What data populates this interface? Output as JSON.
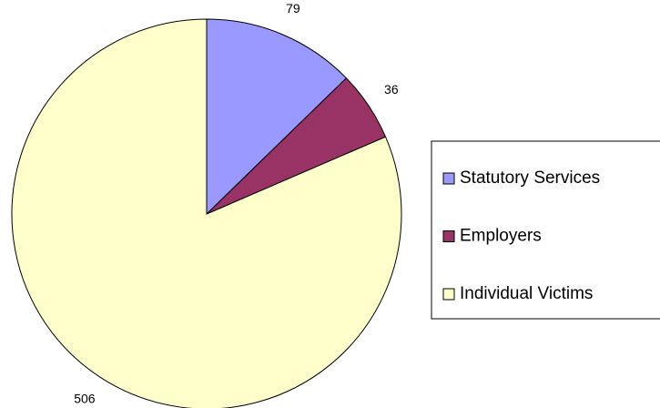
{
  "chart_data": {
    "type": "pie",
    "categories": [
      "Statutory Services",
      "Employers",
      "Individual Victims"
    ],
    "values": [
      79,
      36,
      506
    ],
    "colors": [
      "#9999ff",
      "#993366",
      "#ffffcc"
    ],
    "legend": "right"
  }
}
